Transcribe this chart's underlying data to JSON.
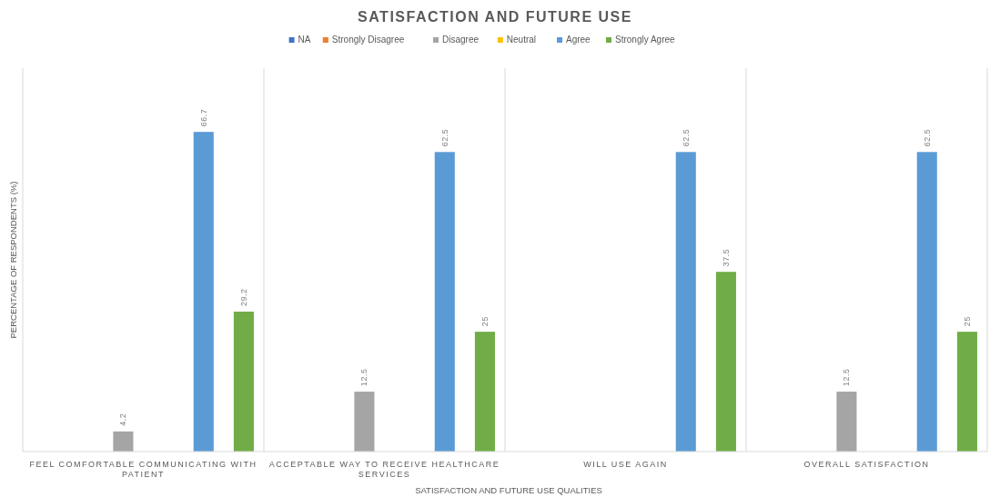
{
  "chart_data": {
    "type": "bar",
    "title": "SATISFACTION AND FUTURE USE",
    "xlabel": "SATISFACTION AND FUTURE USE QUALITIES",
    "ylabel": "PERCENTAGE OF RESPONDENTS (%)",
    "categories": [
      "FEEL COMFORTABLE COMMUNICATING WITH PATIENT",
      "ACCEPTABLE WAY TO RECEIVE HEALTHCARE SERVICES",
      "WILL USE AGAIN",
      "OVERALL SATISFACTION"
    ],
    "series": [
      {
        "name": "NA",
        "color": "#4472c4",
        "values": [
          0,
          0,
          0,
          0
        ],
        "value_labels": [
          null,
          null,
          null,
          null
        ]
      },
      {
        "name": "Strongly Disagree",
        "color": "#ed7d31",
        "values": [
          0,
          0,
          0,
          0
        ],
        "value_labels": [
          null,
          null,
          null,
          null
        ]
      },
      {
        "name": "Disagree",
        "color": "#a5a5a5",
        "values": [
          4.2,
          12.5,
          0,
          12.5
        ],
        "value_labels": [
          "4.2",
          "12.5",
          null,
          "12.5"
        ]
      },
      {
        "name": "Neutral",
        "color": "#ffc000",
        "values": [
          0,
          0,
          0,
          0
        ],
        "value_labels": [
          null,
          null,
          null,
          null
        ]
      },
      {
        "name": "Agree",
        "color": "#5b9bd5",
        "values": [
          66.7,
          62.5,
          62.5,
          62.5
        ],
        "value_labels": [
          "66.7",
          "62.5",
          "62.5",
          "62.5"
        ]
      },
      {
        "name": "Strongly Agree",
        "color": "#70ad47",
        "values": [
          29.2,
          25,
          37.5,
          25
        ],
        "value_labels": [
          "29.2",
          "25",
          "37.5",
          "25"
        ]
      }
    ],
    "ylim": [
      0,
      80
    ],
    "tick_labels": "x",
    "grid": "x",
    "legend": "top"
  }
}
